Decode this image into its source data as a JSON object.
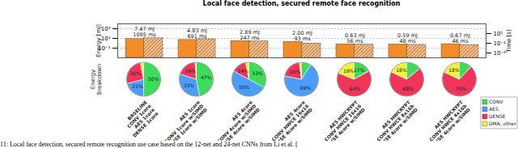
{
  "chart_data": [
    {
      "type": "bar",
      "title": "Local face detection, secured remote face recognition",
      "caption": "11: Local face detection, secured remote recognition use case based on the 12-net and 24-net CNNs from Li et al. [",
      "categories": [
        "BASELINE\nCONV 1core\nAES 1core\nDENSE 1core",
        "AES 1core\nCONV 1core w/SIMD\nDENSE 1core w/SIMD",
        "AES 4core\nCONV 4core w/SIMD\nDENSE 4core w/SIMD",
        "AES 4core\nCONV HWCE 16x16\nDENSE 4core w/SIMD",
        "AES HWCRYPT\nCONV HWCE 16x16\nDENSE 4core w/SIMD",
        "AES HWCRYPT\nCONV HWCE 8x16b\nDENSE 4core w/SIMD",
        "AES HWCRYPT\nCONV HWCE 4x16b\nDENSE 4core w/SIMD"
      ],
      "series": [
        {
          "name": "Energy [mJ]",
          "color": "#f28c28",
          "values": [
            7.47,
            4.83,
            2.89,
            2.0,
            0.63,
            0.59,
            0.67
          ],
          "value_labels": [
            "7.47 mJ",
            "4.83 mJ",
            "2.89 mJ",
            "2.00 mJ",
            "0.63 mJ",
            "0.59 mJ",
            "0.67 mJ"
          ]
        },
        {
          "name": "Time [s]",
          "color": "#a8561a",
          "axis": "y2",
          "values": [
            1.095,
            0.691,
            0.247,
            0.093,
            0.056,
            0.048,
            0.046
          ],
          "value_labels": [
            "1095 ms",
            "691 ms",
            "247 ms",
            "93 ms",
            "56 ms",
            "48 ms",
            "46 ms"
          ]
        }
      ],
      "log": "y",
      "ylim": [
        0.001,
        10000
      ],
      "yticks": [
        {
          "value": 1000,
          "label": "10³"
        },
        {
          "value": 10,
          "label": "10¹"
        },
        {
          "value": 0.1,
          "label": "10⁻¹"
        }
      ],
      "y2lim": [
        0.0001,
        1000
      ],
      "y2ticks": [
        {
          "value": 10,
          "label": "10¹"
        },
        {
          "value": 0.1,
          "label": "10⁻¹"
        },
        {
          "value": 0.001,
          "label": "10⁻³"
        }
      ],
      "grid": true,
      "data_labels": true,
      "tick_labels": "y"
    },
    {
      "type": "pie",
      "title": "Energy\nBreakdown",
      "legend": "right",
      "series": [
        {
          "name": "CONV",
          "color": "#3ddc5a",
          "values": [
            50,
            47,
            33,
            9,
            17,
            14,
            12
          ],
          "value_labels": [
            "50%",
            "47%",
            "33%",
            null,
            "17%",
            null,
            null
          ]
        },
        {
          "name": "AES",
          "color": "#4a9df8",
          "values": [
            21,
            33,
            50,
            69,
            0,
            0,
            0
          ],
          "value_labels": [
            "21%",
            "33%",
            "50%",
            "69%",
            null,
            null,
            null
          ]
        },
        {
          "name": "DENSE",
          "color": "#f0345a",
          "values": [
            26,
            19,
            14,
            20,
            64,
            68,
            70
          ],
          "value_labels": [
            "26%",
            "19%",
            "14%",
            "20%",
            "64%",
            "68%",
            "70%"
          ]
        },
        {
          "name": "DMA, other",
          "color": "#f2f23a",
          "values": [
            3,
            1,
            3,
            2,
            19,
            18,
            18
          ],
          "value_labels": [
            null,
            null,
            null,
            null,
            "19%",
            "18%",
            "18%"
          ]
        }
      ]
    }
  ]
}
